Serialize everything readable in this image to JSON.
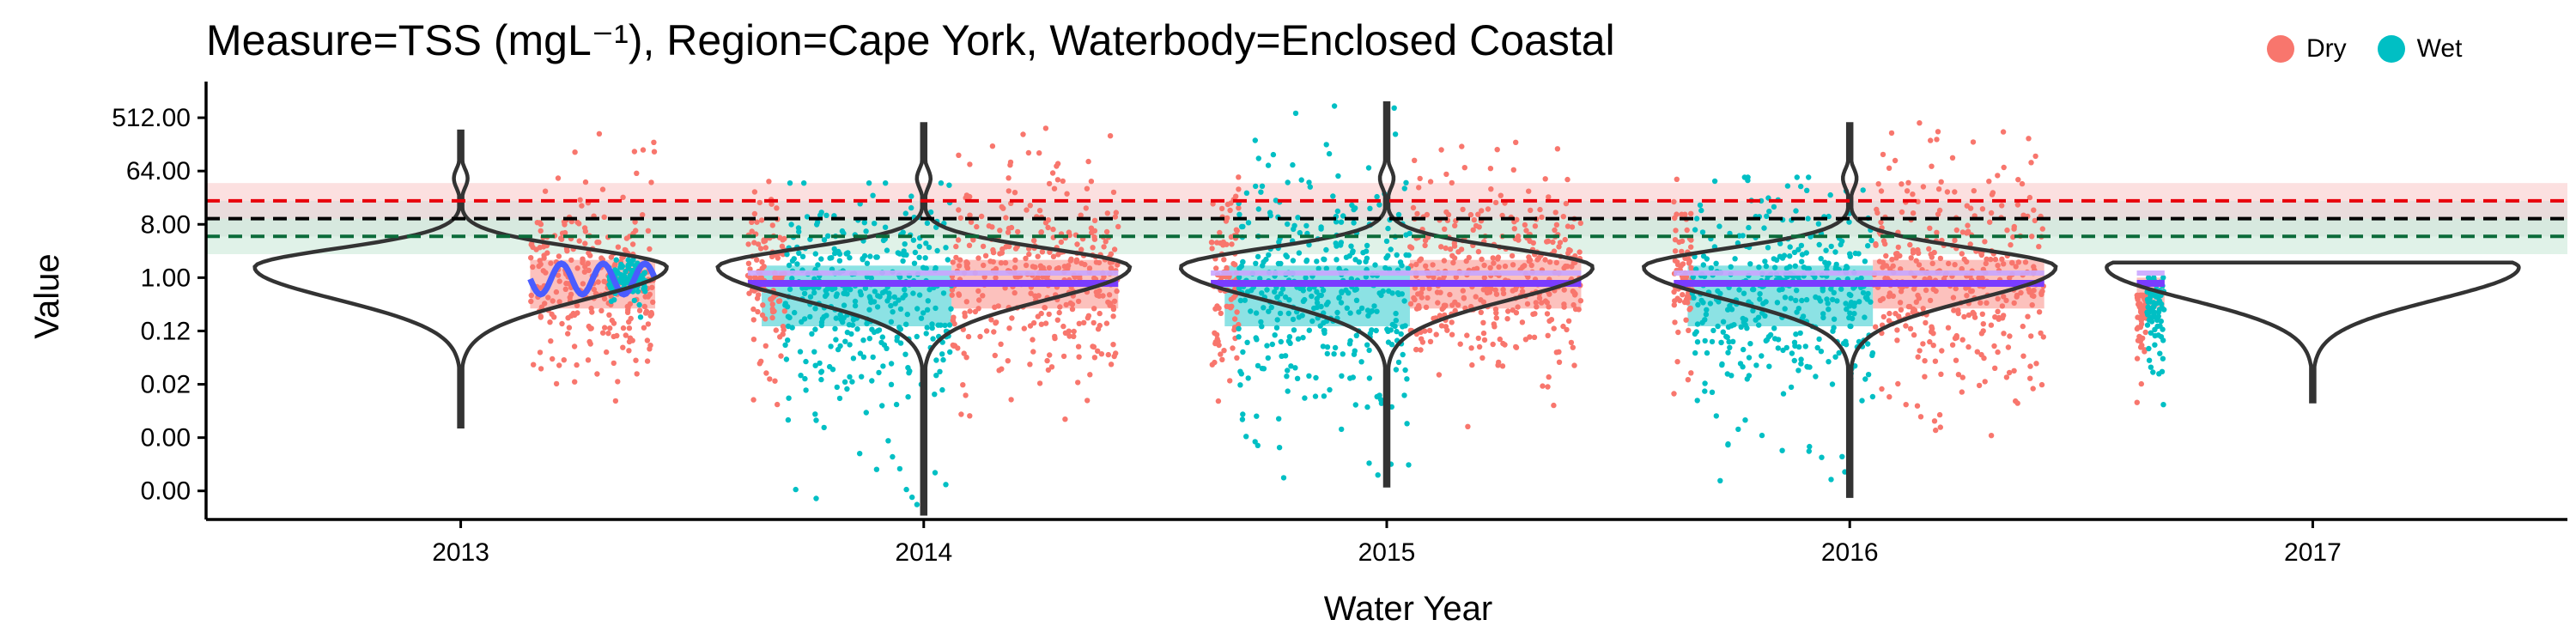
{
  "chart_data": {
    "type": "scatter",
    "title": "Measure=TSS (mgL⁻¹), Region=Cape York, Waterbody=Enclosed Coastal",
    "xlabel": "Water Year",
    "ylabel": "Value",
    "x_ticks": [
      "2013",
      "2014",
      "2015",
      "2016",
      "2017"
    ],
    "y_ticks": [
      {
        "label": "512.00",
        "value": 512
      },
      {
        "label": "64.00",
        "value": 64
      },
      {
        "label": "8.00",
        "value": 8
      },
      {
        "label": "1.00",
        "value": 1
      },
      {
        "label": "0.12",
        "value": 0.125
      },
      {
        "label": "0.02",
        "value": 0.0156
      },
      {
        "label": "0.00",
        "value": 0.00195
      },
      {
        "label": "0.00",
        "value": 0.000244
      }
    ],
    "y_scale": "log2",
    "ylim": [
      8e-05,
      1500
    ],
    "xlim": [
      2012.45,
      2017.55
    ],
    "legend": {
      "position": "top-right",
      "entries": [
        {
          "name": "Dry",
          "color": "#F8766D"
        },
        {
          "name": "Wet",
          "color": "#00BFC4"
        }
      ]
    },
    "guidelines": [
      {
        "value": 20,
        "color": "#e8000b",
        "band": [
          10,
          40
        ],
        "band_color": "#f9c6c6"
      },
      {
        "value": 10,
        "color": "#000000",
        "band": [
          5,
          20
        ],
        "band_color": "#d9d9d9"
      },
      {
        "value": 5,
        "color": "#0b6b3a",
        "band": [
          2.5,
          10
        ],
        "band_color": "#c6e8d6"
      }
    ],
    "series": [
      {
        "name": "Dry",
        "color": "#F8766D",
        "segments": [
          {
            "start": 2013.15,
            "end": 2013.42,
            "lo": 0.008,
            "hi": 300,
            "mid": 0.9
          },
          {
            "start": 2013.62,
            "end": 2013.7,
            "lo": 0.006,
            "hi": 100,
            "mid": 1.0
          },
          {
            "start": 2014.06,
            "end": 2014.42,
            "lo": 0.004,
            "hi": 400,
            "mid": 0.9
          },
          {
            "start": 2014.62,
            "end": 2014.68,
            "lo": 0.003,
            "hi": 300,
            "mid": 1.0
          },
          {
            "start": 2015.05,
            "end": 2015.42,
            "lo": 0.003,
            "hi": 200,
            "mid": 0.9
          },
          {
            "start": 2015.62,
            "end": 2015.66,
            "lo": 0.003,
            "hi": 100,
            "mid": 1.0
          },
          {
            "start": 2016.05,
            "end": 2016.42,
            "lo": 0.002,
            "hi": 700,
            "mid": 0.9
          },
          {
            "start": 2016.62,
            "end": 2016.64,
            "lo": 0.005,
            "hi": 0.5,
            "mid": 0.3
          }
        ]
      },
      {
        "name": "Wet",
        "color": "#00BFC4",
        "segments": [
          {
            "start": 2013.32,
            "end": 2013.4,
            "lo": 0.2,
            "hi": 2,
            "mid": 1.0
          },
          {
            "start": 2013.7,
            "end": 2014.06,
            "lo": 0.0001,
            "hi": 40,
            "mid": 0.5
          },
          {
            "start": 2014.68,
            "end": 2015.05,
            "lo": 0.0003,
            "hi": 900,
            "mid": 0.5
          },
          {
            "start": 2015.66,
            "end": 2016.05,
            "lo": 0.0002,
            "hi": 50,
            "mid": 0.5
          },
          {
            "start": 2016.64,
            "end": 2016.68,
            "lo": 0.005,
            "hi": 1.0,
            "mid": 0.3
          }
        ]
      }
    ],
    "violins": [
      {
        "year": 2013,
        "lo": 0.003,
        "hi": 300,
        "peak": 1.5
      },
      {
        "year": 2014,
        "lo": 0.0001,
        "hi": 400,
        "peak": 1.5
      },
      {
        "year": 2015,
        "lo": 0.0003,
        "hi": 900,
        "peak": 1.5
      },
      {
        "year": 2016,
        "lo": 0.0002,
        "hi": 400,
        "peak": 1.5
      },
      {
        "year": 2017,
        "lo": 0.008,
        "hi": 1.8,
        "peak": 1.5
      }
    ],
    "boxes": [
      {
        "start": 2013.15,
        "end": 2013.42,
        "q1": 0.3,
        "q3": 2.0
      },
      {
        "start": 2013.65,
        "end": 2014.06,
        "q1": 0.15,
        "q3": 1.6,
        "season": "Wet"
      },
      {
        "start": 2014.06,
        "end": 2014.42,
        "q1": 0.3,
        "q3": 2.0
      },
      {
        "start": 2014.65,
        "end": 2015.05,
        "q1": 0.15,
        "q3": 1.6,
        "season": "Wet"
      },
      {
        "start": 2015.05,
        "end": 2015.42,
        "q1": 0.3,
        "q3": 2.0
      },
      {
        "start": 2015.65,
        "end": 2016.05,
        "q1": 0.15,
        "q3": 1.6,
        "season": "Wet"
      },
      {
        "start": 2016.05,
        "end": 2016.42,
        "q1": 0.3,
        "q3": 2.0
      },
      {
        "start": 2016.62,
        "end": 2016.68,
        "q1": 0.3,
        "q3": 1.0
      }
    ],
    "trends": [
      {
        "start": 2013.15,
        "end": 2013.42,
        "level": 0.95,
        "wiggle": true
      },
      {
        "start": 2013.62,
        "end": 2014.42,
        "level": 0.8
      },
      {
        "start": 2014.62,
        "end": 2015.42,
        "level": 0.8
      },
      {
        "start": 2015.62,
        "end": 2016.42,
        "level": 0.8
      },
      {
        "start": 2016.62,
        "end": 2016.68,
        "level": 0.8
      }
    ]
  }
}
